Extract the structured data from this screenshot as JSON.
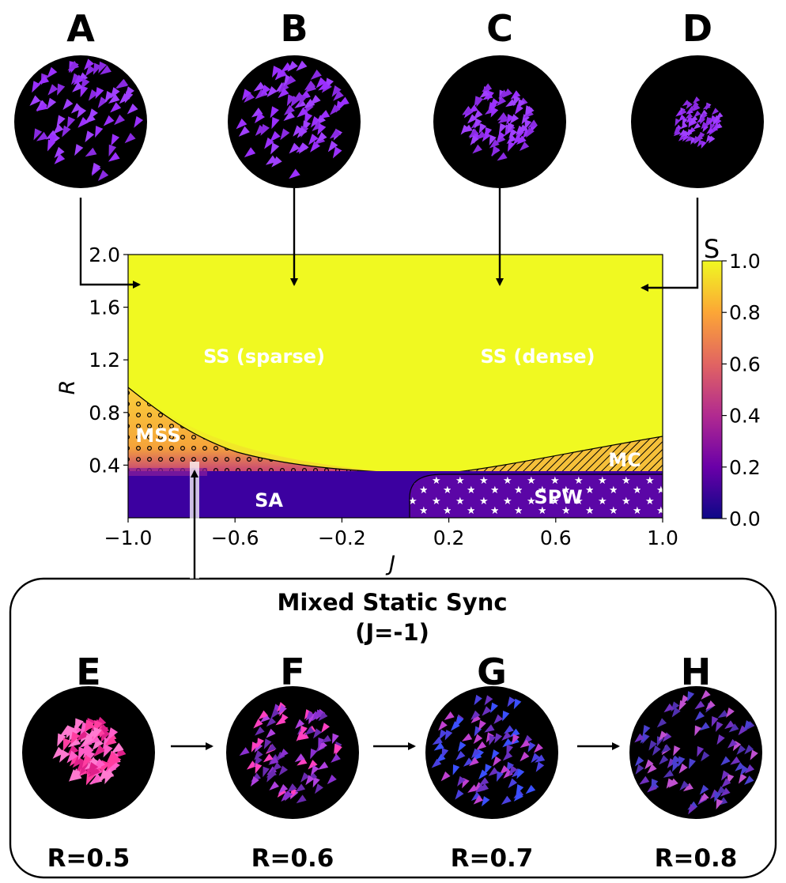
{
  "top_panels": [
    {
      "letter": "A"
    },
    {
      "letter": "B"
    },
    {
      "letter": "C"
    },
    {
      "letter": "D"
    }
  ],
  "bottom_panels": [
    {
      "letter": "E",
      "caption": "R=0.5"
    },
    {
      "letter": "F",
      "caption": "R=0.6"
    },
    {
      "letter": "G",
      "caption": "R=0.7"
    },
    {
      "letter": "H",
      "caption": "R=0.8"
    }
  ],
  "phase_diagram": {
    "xlabel": "J",
    "ylabel": "R",
    "x_ticks": [
      "−1.0",
      "−0.6",
      "−0.2",
      "0.2",
      "0.6",
      "1.0"
    ],
    "y_ticks": [
      "2.0",
      "1.6",
      "1.2",
      "0.8",
      "0.4"
    ],
    "xlim": [
      -1.0,
      1.0
    ],
    "ylim": [
      0.0,
      2.0
    ],
    "regions": {
      "ss_sparse": "SS (sparse)",
      "ss_dense": "SS (dense)",
      "mss": "MSS",
      "sa": "SA",
      "spw": "SPW",
      "mc": "MC"
    },
    "colorbar": {
      "label": "S",
      "ticks": [
        "1.0",
        "0.8",
        "0.6",
        "0.4",
        "0.2",
        "0.0"
      ],
      "range": [
        0.0,
        1.0
      ],
      "colormap": "plasma"
    }
  },
  "mixed_box": {
    "title_line1": "Mixed Static Sync",
    "title_line2": "(J=-1)"
  },
  "colors": {
    "ss": "#f0f921",
    "sa": "#3c00a0",
    "particle_top": "#9b30ff",
    "circle": "#000000"
  }
}
